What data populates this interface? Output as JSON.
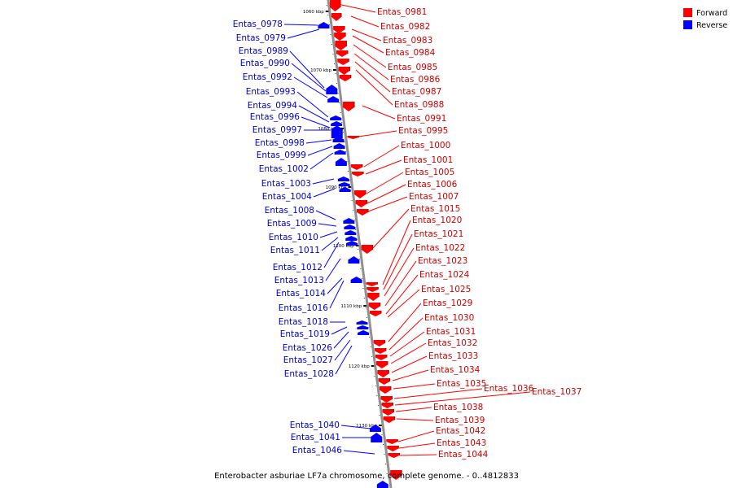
{
  "caption": "Enterobacter asburiae LF7a chromosome, complete genome. - 0..4812833",
  "legend": [
    {
      "label": "Forward",
      "color": "#ff0000"
    },
    {
      "label": "Reverse",
      "color": "#0000ff"
    }
  ],
  "colors": {
    "forward": "#ff0000",
    "reverse": "#0000ff",
    "backbone": "#909090"
  },
  "ticks": [
    "1060 kbp",
    "1070 kbp",
    "1080 kbp",
    "1090 kbp",
    "1100 kbp",
    "1110 kbp",
    "1120 kbp",
    "1130 kbp"
  ],
  "forward_genes": [
    "Entas_0981",
    "Entas_0982",
    "Entas_0983",
    "Entas_0984",
    "Entas_0985",
    "Entas_0986",
    "Entas_0987",
    "Entas_0988",
    "Entas_0991",
    "Entas_0995",
    "Entas_1000",
    "Entas_1001",
    "Entas_1005",
    "Entas_1006",
    "Entas_1007",
    "Entas_1015",
    "Entas_1020",
    "Entas_1021",
    "Entas_1022",
    "Entas_1023",
    "Entas_1024",
    "Entas_1025",
    "Entas_1029",
    "Entas_1030",
    "Entas_1031",
    "Entas_1032",
    "Entas_1033",
    "Entas_1034",
    "Entas_1035",
    "Entas_1036",
    "Entas_1037",
    "Entas_1038",
    "Entas_1039",
    "Entas_1042",
    "Entas_1043",
    "Entas_1044"
  ],
  "reverse_genes": [
    "Entas_0978",
    "Entas_0979",
    "Entas_0989",
    "Entas_0990",
    "Entas_0992",
    "Entas_0993",
    "Entas_0994",
    "Entas_0996",
    "Entas_0997",
    "Entas_0998",
    "Entas_0999",
    "Entas_1002",
    "Entas_1003",
    "Entas_1004",
    "Entas_1008",
    "Entas_1009",
    "Entas_1010",
    "Entas_1011",
    "Entas_1012",
    "Entas_1013",
    "Entas_1014",
    "Entas_1016",
    "Entas_1018",
    "Entas_1019",
    "Entas_1026",
    "Entas_1027",
    "Entas_1028",
    "Entas_1040",
    "Entas_1041",
    "Entas_1046"
  ]
}
